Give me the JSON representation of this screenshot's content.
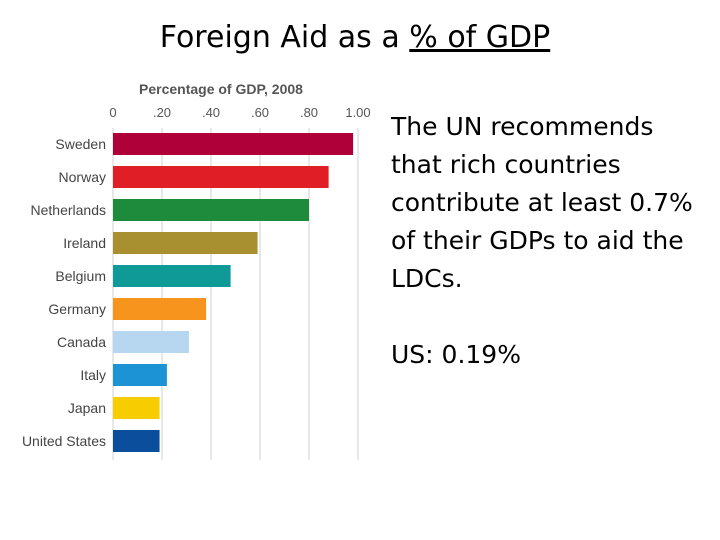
{
  "slide": {
    "title_prefix": "Foreign Aid as a ",
    "title_underlined": "% of GDP",
    "body_text": "The UN recommends that rich countries contribute at least 0.7% of their GDPs to aid the LDCs.",
    "us_note": "US: 0.19%"
  },
  "chart_data": {
    "type": "bar",
    "orientation": "horizontal",
    "title": "Percentage of GDP, 2008",
    "x_ticks": [
      "0",
      ".20",
      ".40",
      ".60",
      ".80",
      "1.00"
    ],
    "xlim": [
      0,
      1.0
    ],
    "grid": true,
    "categories": [
      "Sweden",
      "Norway",
      "Netherlands",
      "Ireland",
      "Belgium",
      "Germany",
      "Canada",
      "Italy",
      "Japan",
      "United States"
    ],
    "values": [
      0.98,
      0.88,
      0.8,
      0.59,
      0.48,
      0.38,
      0.31,
      0.22,
      0.19,
      0.19
    ],
    "colors": [
      "#b0003a",
      "#e01e25",
      "#1e8a3c",
      "#a89030",
      "#0f9a98",
      "#f7941d",
      "#b6d7ef",
      "#1c93d5",
      "#f7cc00",
      "#0b4f9c"
    ]
  }
}
